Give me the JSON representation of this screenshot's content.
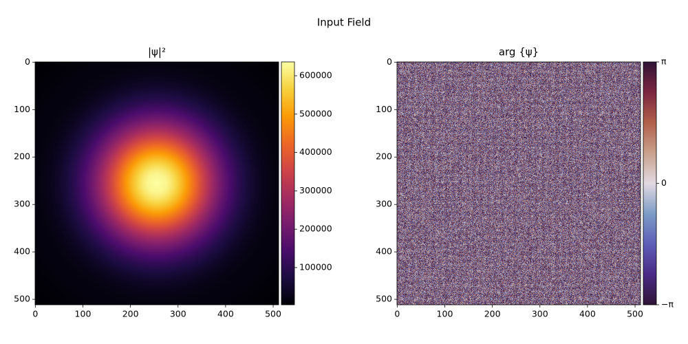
{
  "title": "Input Field",
  "chart_data": [
    {
      "type": "heatmap",
      "title": "|ψ|²",
      "colormap": "inferno",
      "xlim": [
        -0.5,
        511.5
      ],
      "ylim": [
        511.5,
        -0.5
      ],
      "xticks": [
        0,
        100,
        200,
        300,
        400,
        500
      ],
      "yticks": [
        0,
        100,
        200,
        300,
        400,
        500
      ],
      "clim": [
        3000,
        636000
      ],
      "cticks": [
        100000,
        200000,
        300000,
        400000,
        500000,
        600000
      ]
    },
    {
      "type": "noise",
      "title": "arg {ψ}",
      "colormap": "twilight_shifted",
      "xlim": [
        -0.5,
        511.5
      ],
      "ylim": [
        511.5,
        -0.5
      ],
      "xticks": [
        0,
        100,
        200,
        300,
        400,
        500
      ],
      "yticks": [
        0,
        100,
        200,
        300,
        400,
        500
      ],
      "clim": [
        -3.141592653589793,
        3.141592653589793
      ],
      "cticks": [
        {
          "value": -3.141592653589793,
          "label": "−π"
        },
        0,
        {
          "value": 3.141592653589793,
          "label": "π"
        }
      ]
    }
  ]
}
